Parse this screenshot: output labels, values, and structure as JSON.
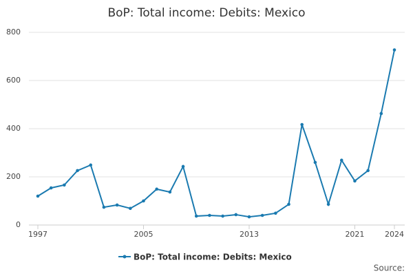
{
  "chart_data": {
    "type": "line",
    "title": "BoP: Total income: Debits: Mexico",
    "x": [
      1997,
      1998,
      1999,
      2000,
      2001,
      2002,
      2003,
      2004,
      2005,
      2006,
      2007,
      2008,
      2009,
      2010,
      2011,
      2012,
      2013,
      2014,
      2015,
      2016,
      2017,
      2018,
      2019,
      2020,
      2021,
      2022,
      2023,
      2024
    ],
    "series": [
      {
        "name": "BoP: Total income: Debits: Mexico",
        "color": "#1a7ab0",
        "values": [
          120,
          154,
          166,
          226,
          249,
          74,
          83,
          69,
          100,
          149,
          137,
          243,
          37,
          40,
          37,
          43,
          34,
          40,
          49,
          86,
          417,
          260,
          86,
          269,
          183,
          226,
          463,
          727
        ]
      }
    ],
    "xlim": [
      1997,
      2024
    ],
    "xticks": [
      1997,
      2005,
      2013,
      2021,
      2024
    ],
    "ylim": [
      0,
      800
    ],
    "yticks": [
      0,
      200,
      400,
      600,
      800
    ],
    "grid": true,
    "source": "Source:"
  }
}
